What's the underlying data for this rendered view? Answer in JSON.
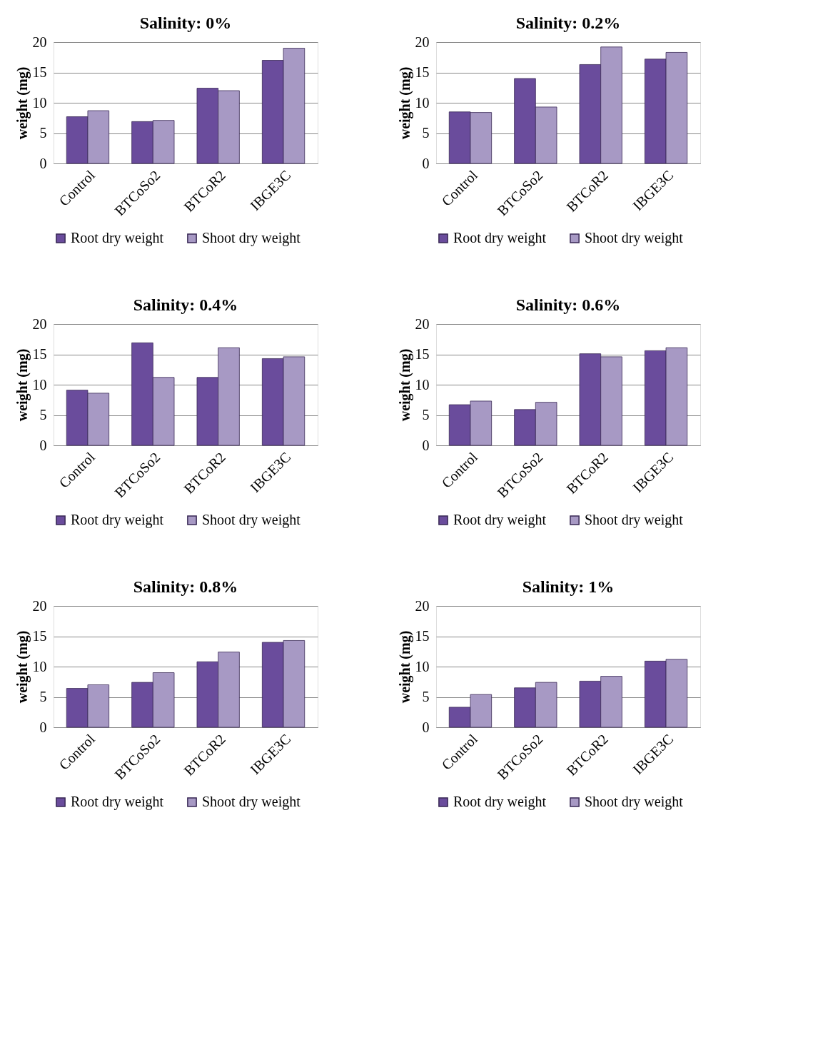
{
  "chart_data": [
    {
      "type": "bar",
      "title": "Salinity: 0%",
      "ylabel": "weight (mg)",
      "categories": [
        "Control",
        "BTCoSo2",
        "BTCoR2",
        "IBGE3C"
      ],
      "ylim": [
        0,
        20
      ],
      "yticks": [
        0,
        5,
        10,
        15,
        20
      ],
      "grid": "y",
      "legend": "bottom",
      "series": [
        {
          "name": "Root dry weight",
          "color": "#6a4c9c",
          "values": [
            7.7,
            6.9,
            12.4,
            17.0
          ]
        },
        {
          "name": "Shoot dry weight",
          "color": "#a799c4",
          "values": [
            8.7,
            7.1,
            12.0,
            19.0
          ]
        }
      ]
    },
    {
      "type": "bar",
      "title": "Salinity: 0.2%",
      "ylabel": "weight (mg)",
      "categories": [
        "Control",
        "BTCoSo2",
        "BTCoR2",
        "IBGE3C"
      ],
      "ylim": [
        0,
        20
      ],
      "yticks": [
        0,
        5,
        10,
        15,
        20
      ],
      "grid": "y",
      "legend": "bottom",
      "series": [
        {
          "name": "Root dry weight",
          "color": "#6a4c9c",
          "values": [
            8.5,
            14.0,
            16.3,
            17.2
          ]
        },
        {
          "name": "Shoot dry weight",
          "color": "#a799c4",
          "values": [
            8.4,
            9.3,
            19.2,
            18.3
          ]
        }
      ]
    },
    {
      "type": "bar",
      "title": "Salinity: 0.4%",
      "ylabel": "weight (mg)",
      "categories": [
        "Control",
        "BTCoSo2",
        "BTCoR2",
        "IBGE3C"
      ],
      "ylim": [
        0,
        20
      ],
      "yticks": [
        0,
        5,
        10,
        15,
        20
      ],
      "grid": "y",
      "legend": "bottom",
      "series": [
        {
          "name": "Root dry weight",
          "color": "#6a4c9c",
          "values": [
            9.1,
            16.9,
            11.2,
            14.3
          ]
        },
        {
          "name": "Shoot dry weight",
          "color": "#a799c4",
          "values": [
            8.6,
            11.2,
            16.1,
            14.6
          ]
        }
      ]
    },
    {
      "type": "bar",
      "title": "Salinity: 0.6%",
      "ylabel": "weight (mg)",
      "categories": [
        "Control",
        "BTCoSo2",
        "BTCoR2",
        "IBGE3C"
      ],
      "ylim": [
        0,
        20
      ],
      "yticks": [
        0,
        5,
        10,
        15,
        20
      ],
      "grid": "y",
      "legend": "bottom",
      "series": [
        {
          "name": "Root dry weight",
          "color": "#6a4c9c",
          "values": [
            6.7,
            5.9,
            15.1,
            15.6
          ]
        },
        {
          "name": "Shoot dry weight",
          "color": "#a799c4",
          "values": [
            7.3,
            7.1,
            14.6,
            16.1
          ]
        }
      ]
    },
    {
      "type": "bar",
      "title": "Salinity: 0.8%",
      "ylabel": "weight (mg)",
      "categories": [
        "Control",
        "BTCoSo2",
        "BTCoR2",
        "IBGE3C"
      ],
      "ylim": [
        0,
        20
      ],
      "yticks": [
        0,
        5,
        10,
        15,
        20
      ],
      "grid": "y",
      "legend": "bottom",
      "series": [
        {
          "name": "Root dry weight",
          "color": "#6a4c9c",
          "values": [
            6.4,
            7.4,
            10.8,
            14.0
          ]
        },
        {
          "name": "Shoot dry weight",
          "color": "#a799c4",
          "values": [
            7.0,
            9.0,
            12.4,
            14.3
          ]
        }
      ]
    },
    {
      "type": "bar",
      "title": "Salinity: 1%",
      "ylabel": "weight (mg)",
      "categories": [
        "Control",
        "BTCoSo2",
        "BTCoR2",
        "IBGE3C"
      ],
      "ylim": [
        0,
        20
      ],
      "yticks": [
        0,
        5,
        10,
        15,
        20
      ],
      "grid": "y",
      "legend": "bottom",
      "series": [
        {
          "name": "Root dry weight",
          "color": "#6a4c9c",
          "values": [
            3.3,
            6.5,
            7.6,
            10.9
          ]
        },
        {
          "name": "Shoot dry weight",
          "color": "#a799c4",
          "values": [
            5.4,
            7.4,
            8.4,
            11.2
          ]
        }
      ]
    }
  ]
}
